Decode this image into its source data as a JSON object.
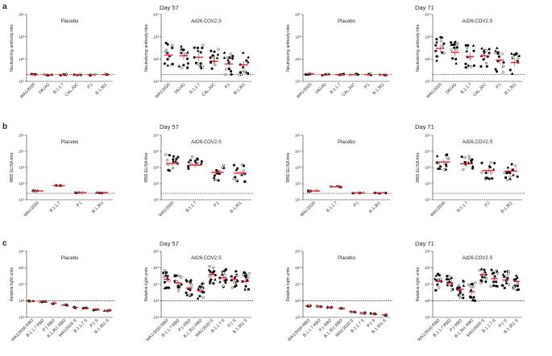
{
  "rows": [
    {
      "label": "a",
      "days": [
        "Day 57",
        "Day 71"
      ],
      "ylabel": "Neutralizing antibody titre"
    },
    {
      "label": "b",
      "days": [
        "Day 57",
        "Day 71"
      ],
      "ylabel": "RBD ELISA titre"
    },
    {
      "label": "c",
      "days": [
        "Day 57",
        "Day 71"
      ],
      "ylabel": "Relative light units"
    }
  ],
  "chart_data": [
    {
      "type": "scatter",
      "row": 0,
      "col": 0,
      "title": "Placebo",
      "ylabel": "Neutralizing antibody titre",
      "yscale": "log",
      "ylim": [
        10,
        10000
      ],
      "yticks": [
        "10¹",
        "10²",
        "10³",
        "10⁴"
      ],
      "lod": 20,
      "categories": [
        "WA1/2020",
        "D614G",
        "B.1.1.7",
        "CAL.20C",
        "P.1",
        "B.1.351"
      ],
      "values": [
        20,
        20,
        20,
        20,
        20,
        20
      ]
    },
    {
      "type": "scatter",
      "row": 0,
      "col": 1,
      "title": "Ad26.COV2.S",
      "ylabel": "Neutralizing antibody titre",
      "yscale": "log",
      "ylim": [
        10,
        10000
      ],
      "yticks": [
        "10¹",
        "10²",
        "10³",
        "10⁴"
      ],
      "lod": 20,
      "categories": [
        "WA1/2020",
        "D614G",
        "B.1.1.7",
        "CAL.20C",
        "P.1",
        "B.1.351"
      ],
      "values": [
        150,
        140,
        120,
        80,
        60,
        55
      ]
    },
    {
      "type": "scatter",
      "row": 0,
      "col": 2,
      "title": "Placebo",
      "ylabel": "Neutralizing antibody titre",
      "yscale": "log",
      "ylim": [
        10,
        10000
      ],
      "yticks": [
        "10¹",
        "10²",
        "10³",
        "10⁴"
      ],
      "lod": 20,
      "categories": [
        "WA1/2020",
        "D614G",
        "B.1.1.7",
        "CAL.20C",
        "P.1",
        "B.1.351"
      ],
      "values": [
        22,
        20,
        20,
        20,
        20,
        20
      ]
    },
    {
      "type": "scatter",
      "row": 0,
      "col": 3,
      "title": "Ad26.COV2.S",
      "ylabel": "Neutralizing antibody titre",
      "yscale": "log",
      "ylim": [
        10,
        10000
      ],
      "yticks": [
        "10¹",
        "10²",
        "10³",
        "10⁴"
      ],
      "lod": 20,
      "categories": [
        "WA1/2020",
        "D614G",
        "B.1.1.7",
        "CAL.20C",
        "P.1",
        "B.1.351"
      ],
      "values": [
        300,
        200,
        130,
        140,
        90,
        70
      ]
    },
    {
      "type": "scatter",
      "row": 1,
      "col": 0,
      "title": "Placebo",
      "ylabel": "RBD ELISA titre",
      "yscale": "log",
      "ylim": [
        10,
        100000
      ],
      "yticks": [
        "10¹",
        "10²",
        "10³",
        "10⁴",
        "10⁵"
      ],
      "lod": 25,
      "categories": [
        "WA1/2020",
        "B.1.1.7",
        "P.1",
        "B.1.351"
      ],
      "values": [
        35,
        75,
        28,
        28
      ]
    },
    {
      "type": "scatter",
      "row": 1,
      "col": 1,
      "title": "Ad26.COV2.S",
      "ylabel": "RBD ELISA titre",
      "yscale": "log",
      "ylim": [
        10,
        100000
      ],
      "yticks": [
        "10¹",
        "10²",
        "10³",
        "10⁴",
        "10⁵"
      ],
      "lod": 25,
      "categories": [
        "WA1/2020",
        "B.1.1.7",
        "P.1",
        "B.1.351"
      ],
      "values": [
        1800,
        1400,
        500,
        450
      ]
    },
    {
      "type": "scatter",
      "row": 1,
      "col": 2,
      "title": "Placebo",
      "ylabel": "RBD ELISA titre",
      "yscale": "log",
      "ylim": [
        10,
        100000
      ],
      "yticks": [
        "10¹",
        "10²",
        "10³",
        "10⁴",
        "10⁵"
      ],
      "lod": 25,
      "categories": [
        "WA1/2020",
        "B.1.1.7",
        "P.1",
        "B.1.351"
      ],
      "values": [
        35,
        65,
        27,
        27
      ]
    },
    {
      "type": "scatter",
      "row": 1,
      "col": 3,
      "title": "Ad26.COV2.S",
      "ylabel": "RBD ELISA titre",
      "yscale": "log",
      "ylim": [
        10,
        100000
      ],
      "yticks": [
        "10¹",
        "10²",
        "10³",
        "10⁴",
        "10⁵"
      ],
      "lod": 25,
      "categories": [
        "WA1/2020",
        "B.1.1.7",
        "P.1",
        "B.1.351"
      ],
      "values": [
        2200,
        1700,
        650,
        600
      ]
    },
    {
      "type": "scatter",
      "row": 2,
      "col": 0,
      "title": "Placebo",
      "ylabel": "Relative light units",
      "yscale": "log",
      "ylim": [
        100,
        1000000
      ],
      "yticks": [
        "10²",
        "10³",
        "10⁴",
        "10⁵",
        "10⁶"
      ],
      "lod": 1000,
      "categories": [
        "WA1/2020 RBD",
        "B.1.1.7 RBD",
        "P.1 RBD",
        "B.1.351 RBD",
        "WA1/2020 S",
        "B.1.1.7 S",
        "P.1 S",
        "B.1.351 S"
      ],
      "values": [
        950,
        900,
        700,
        550,
        400,
        350,
        300,
        250
      ]
    },
    {
      "type": "scatter",
      "row": 2,
      "col": 1,
      "title": "Ad26.COV2.S",
      "ylabel": "Relative light units",
      "yscale": "log",
      "ylim": [
        100,
        1000000
      ],
      "yticks": [
        "10²",
        "10³",
        "10⁴",
        "10⁵",
        "10⁶"
      ],
      "lod": 1000,
      "categories": [
        "WA1/2020 RBD",
        "B.1.1.7 RBD",
        "P.1 RBD",
        "B.1.351 RBD",
        "WA1/2020 S",
        "B.1.1.7 S",
        "P.1 S",
        "B.1.351 S"
      ],
      "values": [
        20000,
        12000,
        6000,
        4000,
        40000,
        25000,
        20000,
        15000
      ]
    },
    {
      "type": "scatter",
      "row": 2,
      "col": 2,
      "title": "Placebo",
      "ylabel": "Relative light units",
      "yscale": "log",
      "ylim": [
        100,
        1000000
      ],
      "yticks": [
        "10²",
        "10³",
        "10⁴",
        "10⁵",
        "10⁶"
      ],
      "lod": 1000,
      "categories": [
        "WA1/2020 RBD",
        "B.1.1.7 RBD",
        "P.1 RBD",
        "B.1.351 RBD",
        "WA1/2020 S",
        "B.1.1.7 S",
        "P.1 S",
        "B.1.351 S"
      ],
      "values": [
        500,
        450,
        400,
        350,
        220,
        180,
        160,
        140
      ]
    },
    {
      "type": "scatter",
      "row": 2,
      "col": 3,
      "title": "Ad26.COV2.S",
      "ylabel": "Relative light units",
      "yscale": "log",
      "ylim": [
        100,
        1000000
      ],
      "yticks": [
        "10²",
        "10³",
        "10⁴",
        "10⁵",
        "10⁶"
      ],
      "lod": 1000,
      "categories": [
        "WA1/2020 RBD",
        "B.1.1.7 RBD",
        "P.1 RBD",
        "B.1.351 RBD",
        "WA1/2020 S",
        "B.1.1.7 S",
        "P.1 S",
        "B.1.351 S"
      ],
      "values": [
        15000,
        12000,
        5000,
        3500,
        40000,
        22000,
        18000,
        15000
      ]
    }
  ]
}
